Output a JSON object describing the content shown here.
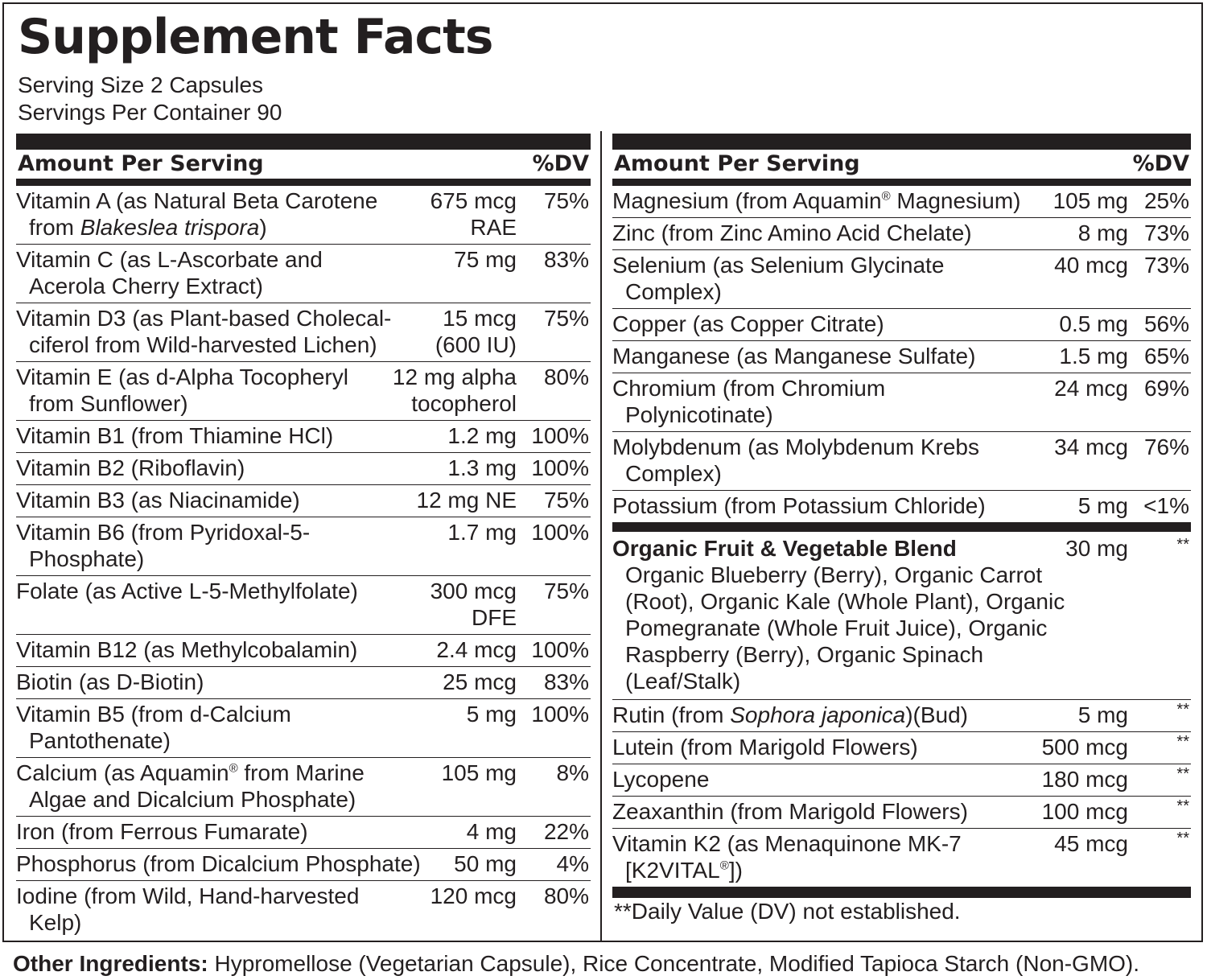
{
  "title": "Supplement Facts",
  "serving_size": "Serving Size 2 Capsules",
  "servings_per_container": "Servings Per Container 90",
  "header": {
    "amount": "Amount Per Serving",
    "dv": "%DV"
  },
  "left_rows": [
    {
      "line1": "Vitamin A (as Natural Beta Carotene",
      "line2_pre": "from ",
      "line2_em": "Blakeslea trispora",
      "line2_post": ")",
      "amt1": "675 mcg",
      "amt2": "RAE",
      "dv": "75%"
    },
    {
      "line1": "Vitamin C (as L-Ascorbate and",
      "line2": "Acerola Cherry Extract)",
      "amt1": "75 mg",
      "dv": "83%"
    },
    {
      "line1": "Vitamin D3 (as Plant-based Cholecal-",
      "line2": "ciferol from Wild-harvested Lichen)",
      "amt1": "15 mcg",
      "amt2": "(600 IU)",
      "dv": "75%"
    },
    {
      "line1": "Vitamin E (as d-Alpha Tocopheryl",
      "line2": "from Sunflower)",
      "amt1": "12 mg alpha",
      "amt2": "tocopherol",
      "dv": "80%"
    },
    {
      "line1": "Vitamin B1 (from Thiamine HCl)",
      "amt1": "1.2 mg",
      "dv": "100%"
    },
    {
      "line1": "Vitamin B2 (Riboflavin)",
      "amt1": "1.3 mg",
      "dv": "100%"
    },
    {
      "line1": "Vitamin B3 (as Niacinamide)",
      "amt1": "12 mg NE",
      "dv": "75%"
    },
    {
      "line1": "Vitamin B6 (from Pyridoxal-5-",
      "line2": "Phosphate)",
      "amt1": "1.7 mg",
      "dv": "100%"
    },
    {
      "line1": "Folate (as Active L-5-Methylfolate)",
      "amt1": "300 mcg",
      "amt2": "DFE",
      "dv": "75%"
    },
    {
      "line1": "Vitamin B12 (as Methylcobalamin)",
      "amt1": "2.4 mcg",
      "dv": "100%"
    },
    {
      "line1": "Biotin (as D-Biotin)",
      "amt1": "25 mcg",
      "dv": "83%"
    },
    {
      "line1": "Vitamin B5 (from d-Calcium",
      "line2": "Pantothenate)",
      "amt1": "5 mg",
      "dv": "100%"
    },
    {
      "line1_pre": "Calcium (as Aquamin",
      "line1_sup": "®",
      "line1_post": " from Marine",
      "line2": "Algae and Dicalcium Phosphate)",
      "amt1": "105 mg",
      "dv": "8%"
    },
    {
      "line1": "Iron (from Ferrous Fumarate)",
      "amt1": "4 mg",
      "dv": "22%"
    },
    {
      "line1": "Phosphorus (from Dicalcium Phosphate)",
      "amt1": "50 mg",
      "dv": "4%"
    },
    {
      "line1": "Iodine (from Wild, Hand-harvested",
      "line2": "Kelp)",
      "amt1": "120 mcg",
      "dv": "80%"
    }
  ],
  "right_rows": [
    {
      "line1_pre": "Magnesium (from Aquamin",
      "line1_sup": "®",
      "line1_post": " Magnesium)",
      "amt1": "105 mg",
      "dv": "25%"
    },
    {
      "line1": "Zinc (from Zinc Amino Acid Chelate)",
      "amt1": "8 mg",
      "dv": "73%"
    },
    {
      "line1": "Selenium (as Selenium Glycinate",
      "line2": "Complex)",
      "amt1": "40 mcg",
      "dv": "73%"
    },
    {
      "line1": "Copper (as Copper Citrate)",
      "amt1": "0.5 mg",
      "dv": "56%"
    },
    {
      "line1": "Manganese (as Manganese Sulfate)",
      "amt1": "1.5 mg",
      "dv": "65%"
    },
    {
      "line1": "Chromium (from Chromium",
      "line2": "Polynicotinate)",
      "amt1": "24 mcg",
      "dv": "69%"
    },
    {
      "line1": "Molybdenum (as Molybdenum Krebs",
      "line2": "Complex)",
      "amt1": "34 mcg",
      "dv": "76%"
    },
    {
      "line1": "Potassium (from Potassium Chloride)",
      "amt1": "5 mg",
      "dv": "<1%"
    }
  ],
  "blend": {
    "title": "Organic Fruit & Vegetable Blend",
    "amt": "30 mg",
    "dv": "**",
    "lines": [
      "Organic Blueberry (Berry), Organic Carrot",
      "(Root), Organic Kale (Whole Plant), Organic",
      "Pomegranate (Whole Fruit Juice), Organic",
      "Raspberry (Berry), Organic Spinach",
      "(Leaf/Stalk)"
    ]
  },
  "extra_rows": [
    {
      "line1_pre": "Rutin (from ",
      "line1_em": "Sophora japonica",
      "line1_post": ")(Bud)",
      "amt1": "5 mg",
      "dv": "**"
    },
    {
      "line1": "Lutein (from Marigold Flowers)",
      "amt1": "500 mcg",
      "dv": "**"
    },
    {
      "line1": "Lycopene",
      "amt1": "180 mcg",
      "dv": "**"
    },
    {
      "line1": "Zeaxanthin (from Marigold Flowers)",
      "amt1": "100 mcg",
      "dv": "**"
    },
    {
      "line1": "Vitamin K2 (as Menaquinone MK-7",
      "line2_pre": "[K2VITAL",
      "line2_sup": "®",
      "line2_post": "])",
      "amt1": "45 mcg",
      "dv": "**"
    }
  ],
  "footnote": "**Daily Value (DV) not established.",
  "other_ingredients": {
    "label": "Other Ingredients:",
    "text": " Hypromellose (Vegetarian Capsule), Rice Concentrate, Modified Tapioca Starch (Non-GMO)."
  }
}
